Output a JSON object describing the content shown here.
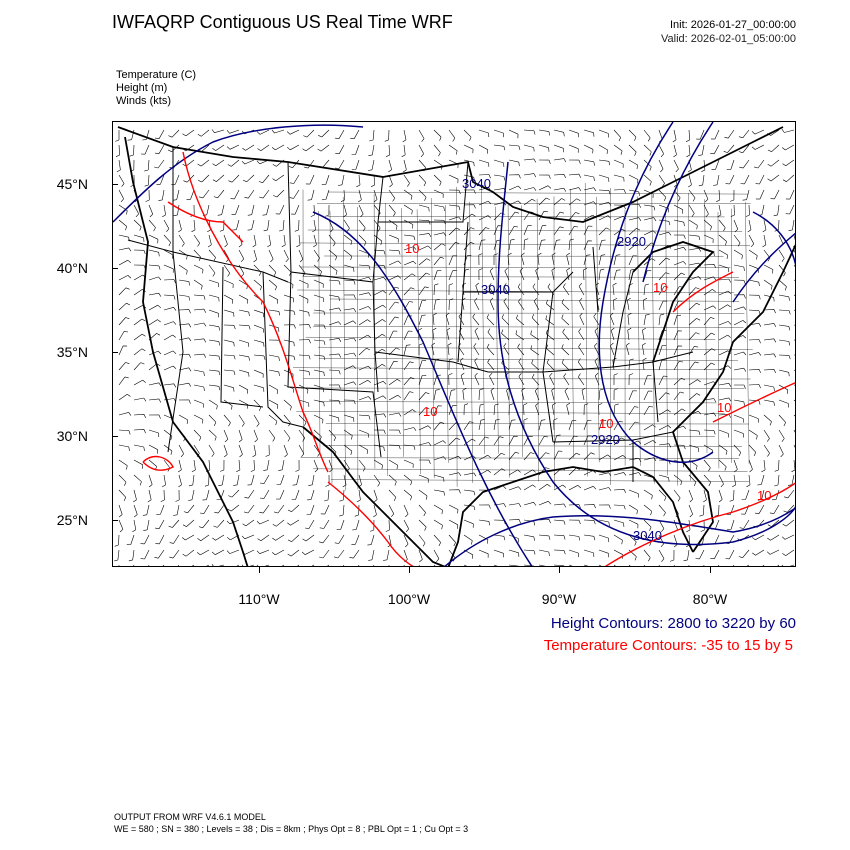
{
  "header": {
    "title": "IWFAQRP Contiguous US Real Time WRF",
    "init": "Init: 2026-01-27_00:00:00",
    "valid": "Valid: 2026-02-01_05:00:00"
  },
  "fields": [
    {
      "label": "Temperature   (C)"
    },
    {
      "label": "Height   (m)"
    },
    {
      "label": "Winds   (kts)"
    }
  ],
  "axes": {
    "lat_labels": [
      "45°N",
      "40°N",
      "35°N",
      "30°N",
      "25°N"
    ],
    "lon_labels": [
      "110°W",
      "100°W",
      "90°W",
      "80°W"
    ]
  },
  "contour_labels": {
    "height": [
      "3040",
      "2920",
      "3040",
      "2920",
      "3040"
    ],
    "temperature": [
      "10",
      "10",
      "10",
      "10",
      "10",
      "10"
    ]
  },
  "legend": {
    "height": "Height Contours: 2800 to 3220 by 60",
    "temperature": "Temperature Contours: -35 to 15 by 5"
  },
  "footer": {
    "line1": "OUTPUT FROM WRF V4.6.1 MODEL",
    "line2": "WE = 580 ; SN = 380 ; Levels = 38 ; Dis = 8km ; Phys Opt = 8 ; PBL Opt = 1 ; Cu Opt = 3"
  },
  "colors": {
    "height_contour": "#000080",
    "temperature_contour": "#ff0000",
    "map_lines": "#000000"
  }
}
